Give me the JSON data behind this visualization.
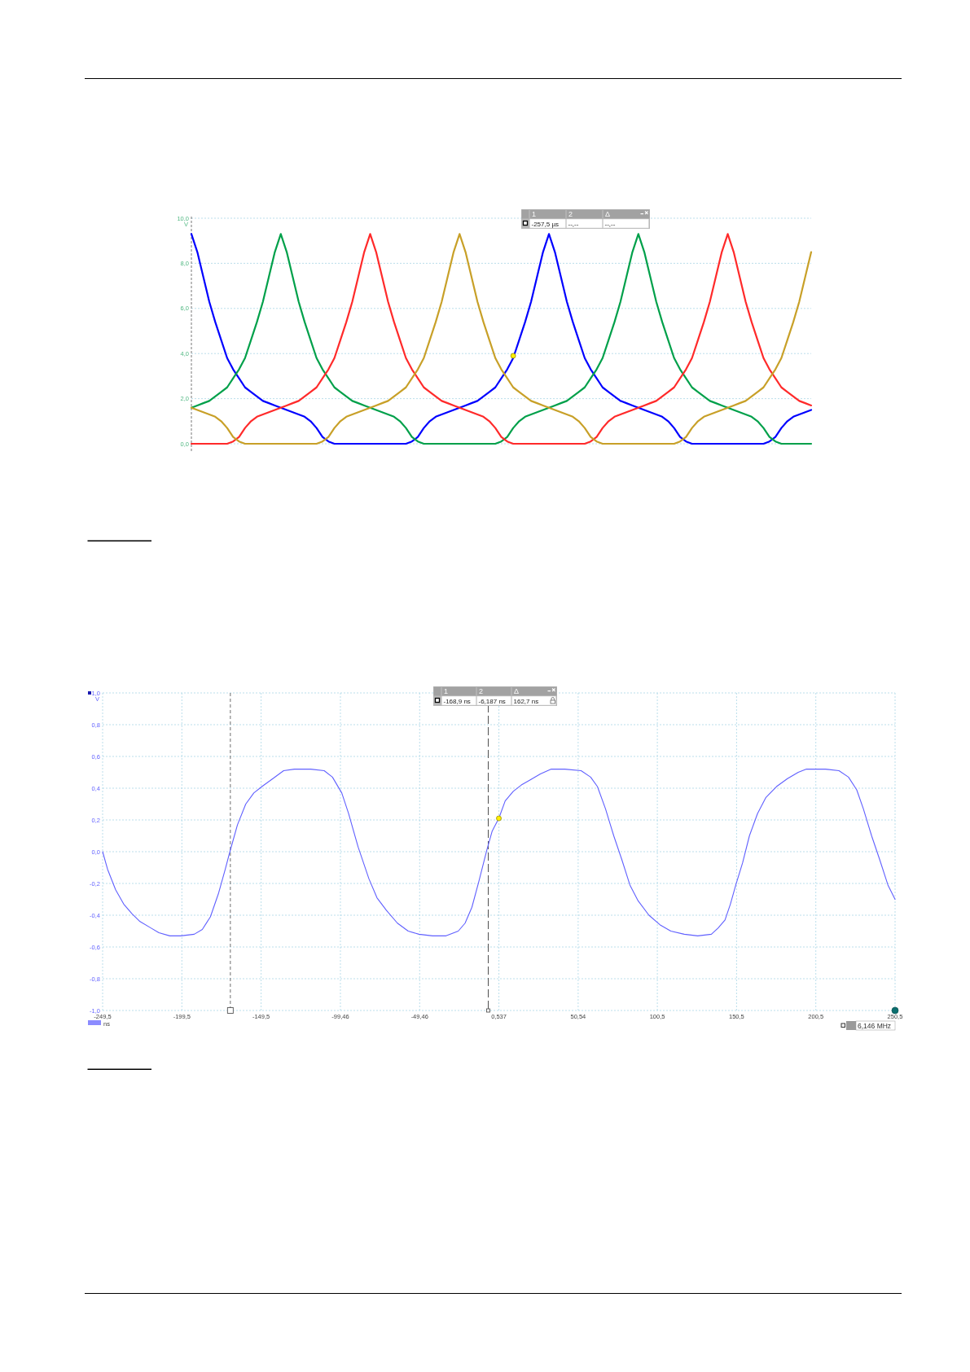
{
  "chart_data": [
    {
      "type": "line",
      "ylabel": "V",
      "categories": [
        null,
        null,
        null,
        null,
        null,
        null,
        null,
        null,
        null,
        null,
        null,
        null,
        null,
        null,
        null,
        null,
        null,
        null,
        null,
        null,
        null,
        null,
        null,
        null,
        null,
        null,
        null,
        null,
        null,
        null,
        null,
        null,
        null,
        null,
        null,
        null,
        null,
        null,
        null,
        null,
        null,
        null,
        null,
        null,
        null,
        null,
        null,
        null,
        null,
        null,
        null,
        null,
        null,
        null,
        null,
        null,
        null,
        null,
        null,
        null,
        null,
        null,
        null,
        null,
        null,
        null,
        null,
        null,
        null,
        null,
        null,
        null,
        null,
        null,
        null,
        null,
        null,
        null,
        null,
        null,
        null,
        null,
        null,
        null,
        null,
        null,
        null,
        null,
        null,
        null,
        null,
        null,
        null,
        null,
        null,
        null,
        null,
        null,
        null,
        null,
        null,
        null,
        null,
        null,
        null
      ],
      "series": [
        {
          "color": "#0000ff",
          "values": [
            9.3,
            8.5,
            7.4,
            6.3,
            5.4,
            4.6,
            3.8,
            3.3,
            2.9,
            2.5,
            2.3,
            2.1,
            1.9,
            1.8,
            1.7,
            1.6,
            1.5,
            1.4,
            1.3,
            1.2,
            1.0,
            0.7,
            0.3,
            0.1,
            0,
            0,
            0,
            0,
            0,
            0,
            0,
            0,
            0,
            0,
            0,
            0,
            0,
            0.1,
            0.3,
            0.7,
            1.0,
            1.2,
            1.3,
            1.4,
            1.5,
            1.6,
            1.7,
            1.8,
            1.9,
            2.1,
            2.3,
            2.5,
            2.9,
            3.3,
            3.8,
            4.6,
            5.4,
            6.3,
            7.4,
            8.5,
            9.3,
            8.5,
            7.4,
            6.3,
            5.4,
            4.6,
            3.8,
            3.3,
            2.9,
            2.5,
            2.3,
            2.1,
            1.9,
            1.8,
            1.7,
            1.6,
            1.5,
            1.4,
            1.3,
            1.2,
            1.0,
            0.7,
            0.3,
            0.1,
            0,
            0,
            0,
            0,
            0,
            0,
            0,
            0,
            0,
            0,
            0,
            0,
            0,
            0.1,
            0.3,
            0.7,
            1.0,
            1.2,
            1.3,
            1.4,
            1.5
          ]
        },
        {
          "color": "#00a04a",
          "values": [
            1.6,
            1.7,
            1.8,
            1.9,
            2.1,
            2.3,
            2.5,
            2.9,
            3.3,
            3.8,
            4.6,
            5.4,
            6.3,
            7.4,
            8.5,
            9.3,
            8.5,
            7.4,
            6.3,
            5.4,
            4.6,
            3.8,
            3.3,
            2.9,
            2.5,
            2.3,
            2.1,
            1.9,
            1.8,
            1.7,
            1.6,
            1.5,
            1.4,
            1.3,
            1.2,
            1.0,
            0.7,
            0.3,
            0.1,
            0,
            0,
            0,
            0,
            0,
            0,
            0,
            0,
            0,
            0,
            0,
            0,
            0,
            0.1,
            0.3,
            0.7,
            1.0,
            1.2,
            1.3,
            1.4,
            1.5,
            1.6,
            1.7,
            1.8,
            1.9,
            2.1,
            2.3,
            2.5,
            2.9,
            3.3,
            3.8,
            4.6,
            5.4,
            6.3,
            7.4,
            8.5,
            9.3,
            8.5,
            7.4,
            6.3,
            5.4,
            4.6,
            3.8,
            3.3,
            2.9,
            2.5,
            2.3,
            2.1,
            1.9,
            1.8,
            1.7,
            1.6,
            1.5,
            1.4,
            1.3,
            1.2,
            1.0,
            0.7,
            0.3,
            0.1,
            0,
            0,
            0,
            0,
            0,
            0
          ]
        },
        {
          "color": "#ff2a2a",
          "values": [
            0,
            0,
            0,
            0,
            0,
            0,
            0,
            0.1,
            0.3,
            0.7,
            1.0,
            1.2,
            1.3,
            1.4,
            1.5,
            1.6,
            1.7,
            1.8,
            1.9,
            2.1,
            2.3,
            2.5,
            2.9,
            3.3,
            3.8,
            4.6,
            5.4,
            6.3,
            7.4,
            8.5,
            9.3,
            8.5,
            7.4,
            6.3,
            5.4,
            4.6,
            3.8,
            3.3,
            2.9,
            2.5,
            2.3,
            2.1,
            1.9,
            1.8,
            1.7,
            1.6,
            1.5,
            1.4,
            1.3,
            1.2,
            1.0,
            0.7,
            0.3,
            0.1,
            0,
            0,
            0,
            0,
            0,
            0,
            0,
            0,
            0,
            0,
            0,
            0,
            0,
            0.1,
            0.3,
            0.7,
            1.0,
            1.2,
            1.3,
            1.4,
            1.5,
            1.6,
            1.7,
            1.8,
            1.9,
            2.1,
            2.3,
            2.5,
            2.9,
            3.3,
            3.8,
            4.6,
            5.4,
            6.3,
            7.4,
            8.5,
            9.3,
            8.5,
            7.4,
            6.3,
            5.4,
            4.6,
            3.8,
            3.3,
            2.9,
            2.5,
            2.3,
            2.1,
            1.9,
            1.8,
            1.7
          ]
        },
        {
          "color": "#c8a028",
          "values": [
            1.6,
            1.5,
            1.4,
            1.3,
            1.2,
            1.0,
            0.7,
            0.3,
            0.1,
            0,
            0,
            0,
            0,
            0,
            0,
            0,
            0,
            0,
            0,
            0,
            0,
            0,
            0.1,
            0.3,
            0.7,
            1.0,
            1.2,
            1.3,
            1.4,
            1.5,
            1.6,
            1.7,
            1.8,
            1.9,
            2.1,
            2.3,
            2.5,
            2.9,
            3.3,
            3.8,
            4.6,
            5.4,
            6.3,
            7.4,
            8.5,
            9.3,
            8.5,
            7.4,
            6.3,
            5.4,
            4.6,
            3.8,
            3.3,
            2.9,
            2.5,
            2.3,
            2.1,
            1.9,
            1.8,
            1.7,
            1.6,
            1.5,
            1.4,
            1.3,
            1.2,
            1.0,
            0.7,
            0.3,
            0.1,
            0,
            0,
            0,
            0,
            0,
            0,
            0,
            0,
            0,
            0,
            0,
            0,
            0,
            0.1,
            0.3,
            0.7,
            1.0,
            1.2,
            1.3,
            1.4,
            1.5,
            1.6,
            1.7,
            1.8,
            1.9,
            2.1,
            2.3,
            2.5,
            2.9,
            3.3,
            3.8,
            4.6,
            5.4,
            6.3,
            7.4,
            8.5
          ]
        },
        {
          "type": "scatter",
          "color": "#ffee00",
          "values": [
            null,
            null,
            null,
            null,
            null,
            null,
            null,
            null,
            null,
            null,
            null,
            null,
            null,
            null,
            null,
            null,
            null,
            null,
            null,
            null,
            null,
            null,
            null,
            null,
            null,
            null,
            null,
            null,
            null,
            null,
            null,
            null,
            null,
            null,
            null,
            null,
            null,
            null,
            null,
            null,
            null,
            null,
            null,
            null,
            null,
            null,
            null,
            null,
            null,
            null,
            null,
            null,
            null,
            null,
            3.9,
            null,
            null,
            null,
            null,
            null,
            null,
            null,
            null,
            null,
            null,
            null,
            null,
            null,
            null,
            null,
            null,
            null,
            null,
            null,
            null,
            null,
            null,
            null,
            null,
            null,
            null,
            null,
            null,
            null,
            null,
            null,
            null,
            null,
            null,
            null,
            null,
            null,
            null,
            null,
            null,
            null,
            null,
            null,
            null,
            null,
            null,
            null,
            null,
            null,
            null
          ]
        }
      ],
      "ylim": [
        0,
        10
      ],
      "yticks": [
        {
          "value": 0,
          "label": "0,0"
        },
        {
          "value": 2,
          "label": "2,0"
        },
        {
          "value": 4,
          "label": "4,0"
        },
        {
          "value": 6,
          "label": "6,0"
        },
        {
          "value": 8,
          "label": "8,0"
        },
        {
          "value": 10,
          "label": "10,0"
        }
      ],
      "grid": "y",
      "annotations": [
        "1",
        "2",
        "Δ",
        "-257,5 µs",
        "--,--",
        "--,--"
      ]
    },
    {
      "type": "line",
      "xlabel": "ns",
      "ylabel": "V",
      "series": [
        {
          "color": "#6060ff",
          "x": [
            -249.5,
            -246.4,
            -241.3,
            -236.2,
            -231.0,
            -225.9,
            -219.1,
            -214.0,
            -207.1,
            -200.3,
            -191.7,
            -186.6,
            -181.5,
            -176.3,
            -172.1,
            -169.2,
            -164.4,
            -159.2,
            -154.1,
            -149.0,
            -142.1,
            -135.3,
            -128.5,
            -118.2,
            -109.7,
            -104.5,
            -98.6,
            -94.3,
            -88.3,
            -81.5,
            -76.4,
            -70.4,
            -63.5,
            -56.7,
            -49.9,
            -41.3,
            -32.8,
            -25.1,
            -20.8,
            -16.5,
            -12.2,
            -7.1,
            -3.7,
            0.5,
            4.5,
            9.6,
            14.7,
            19.9,
            26.7,
            33.6,
            42.1,
            52.4,
            58.4,
            62.7,
            67.8,
            73.0,
            78.1,
            83.2,
            88.4,
            95.2,
            102.1,
            109.0,
            117.5,
            126.0,
            134.6,
            138.9,
            143.2,
            146.6,
            150.0,
            154.3,
            158.6,
            163.7,
            168.9,
            175.7,
            182.6,
            189.4,
            194.6,
            206.6,
            215.1,
            221.1,
            226.3,
            230.5,
            235.7,
            240.8,
            246.0,
            250.5
          ],
          "values": [
            0.0,
            -0.11,
            -0.24,
            -0.33,
            -0.39,
            -0.44,
            -0.48,
            -0.51,
            -0.53,
            -0.53,
            -0.52,
            -0.49,
            -0.41,
            -0.26,
            -0.11,
            0.0,
            0.17,
            0.3,
            0.37,
            0.41,
            0.46,
            0.51,
            0.52,
            0.52,
            0.51,
            0.47,
            0.37,
            0.24,
            0.03,
            -0.17,
            -0.29,
            -0.37,
            -0.45,
            -0.5,
            -0.52,
            -0.53,
            -0.53,
            -0.5,
            -0.45,
            -0.35,
            -0.19,
            0.01,
            0.13,
            0.21,
            0.32,
            0.38,
            0.42,
            0.45,
            0.49,
            0.52,
            0.52,
            0.51,
            0.47,
            0.41,
            0.27,
            0.1,
            -0.05,
            -0.21,
            -0.31,
            -0.4,
            -0.46,
            -0.5,
            -0.52,
            -0.53,
            -0.52,
            -0.48,
            -0.43,
            -0.33,
            -0.21,
            -0.07,
            0.1,
            0.24,
            0.34,
            0.41,
            0.46,
            0.5,
            0.52,
            0.52,
            0.51,
            0.47,
            0.39,
            0.27,
            0.1,
            -0.05,
            -0.21,
            -0.3
          ]
        },
        {
          "type": "scatter",
          "color": "#ffee00",
          "x": [
            0.5
          ],
          "values": [
            0.21
          ]
        }
      ],
      "xlim": [
        -249.5,
        250.5
      ],
      "xticks": [
        {
          "value": -249.5,
          "label": "-249,5"
        },
        {
          "value": -199.5,
          "label": "-199,5"
        },
        {
          "value": -149.5,
          "label": "-149,5"
        },
        {
          "value": -99.46,
          "label": "-99,46"
        },
        {
          "value": -49.46,
          "label": "-49,46"
        },
        {
          "value": 0.537,
          "label": "0,537"
        },
        {
          "value": 50.54,
          "label": "50,54"
        },
        {
          "value": 100.5,
          "label": "100,5"
        },
        {
          "value": 150.5,
          "label": "150,5"
        },
        {
          "value": 200.5,
          "label": "200,5"
        },
        {
          "value": 250.5,
          "label": "250,5"
        }
      ],
      "ylim": [
        -1,
        1
      ],
      "yticks": [
        {
          "value": -1,
          "label": "-1,0"
        },
        {
          "value": -0.8,
          "label": "-0,8"
        },
        {
          "value": -0.6,
          "label": "-0,6"
        },
        {
          "value": -0.4,
          "label": "-0,4"
        },
        {
          "value": -0.2,
          "label": "-0,2"
        },
        {
          "value": 0,
          "label": "0,0"
        },
        {
          "value": 0.2,
          "label": "0,2"
        },
        {
          "value": 0.4,
          "label": "0,4"
        },
        {
          "value": 0.6,
          "label": "0,6"
        },
        {
          "value": 0.8,
          "label": "0,8"
        },
        {
          "value": 1,
          "label": "1,0"
        }
      ],
      "grid": true,
      "ref_lines": [
        {
          "axis": "x",
          "value": -168.9,
          "line_style": "dashed",
          "color": "#6e6e6e"
        },
        {
          "axis": "x",
          "value": -6.187,
          "line_style": "dashed",
          "color": "#505050"
        }
      ],
      "annotations": [
        "1",
        "2",
        "Δ",
        "-168,9 ns",
        "-6,187 ns",
        "162,7 ns",
        "6,146 MHz"
      ]
    }
  ]
}
